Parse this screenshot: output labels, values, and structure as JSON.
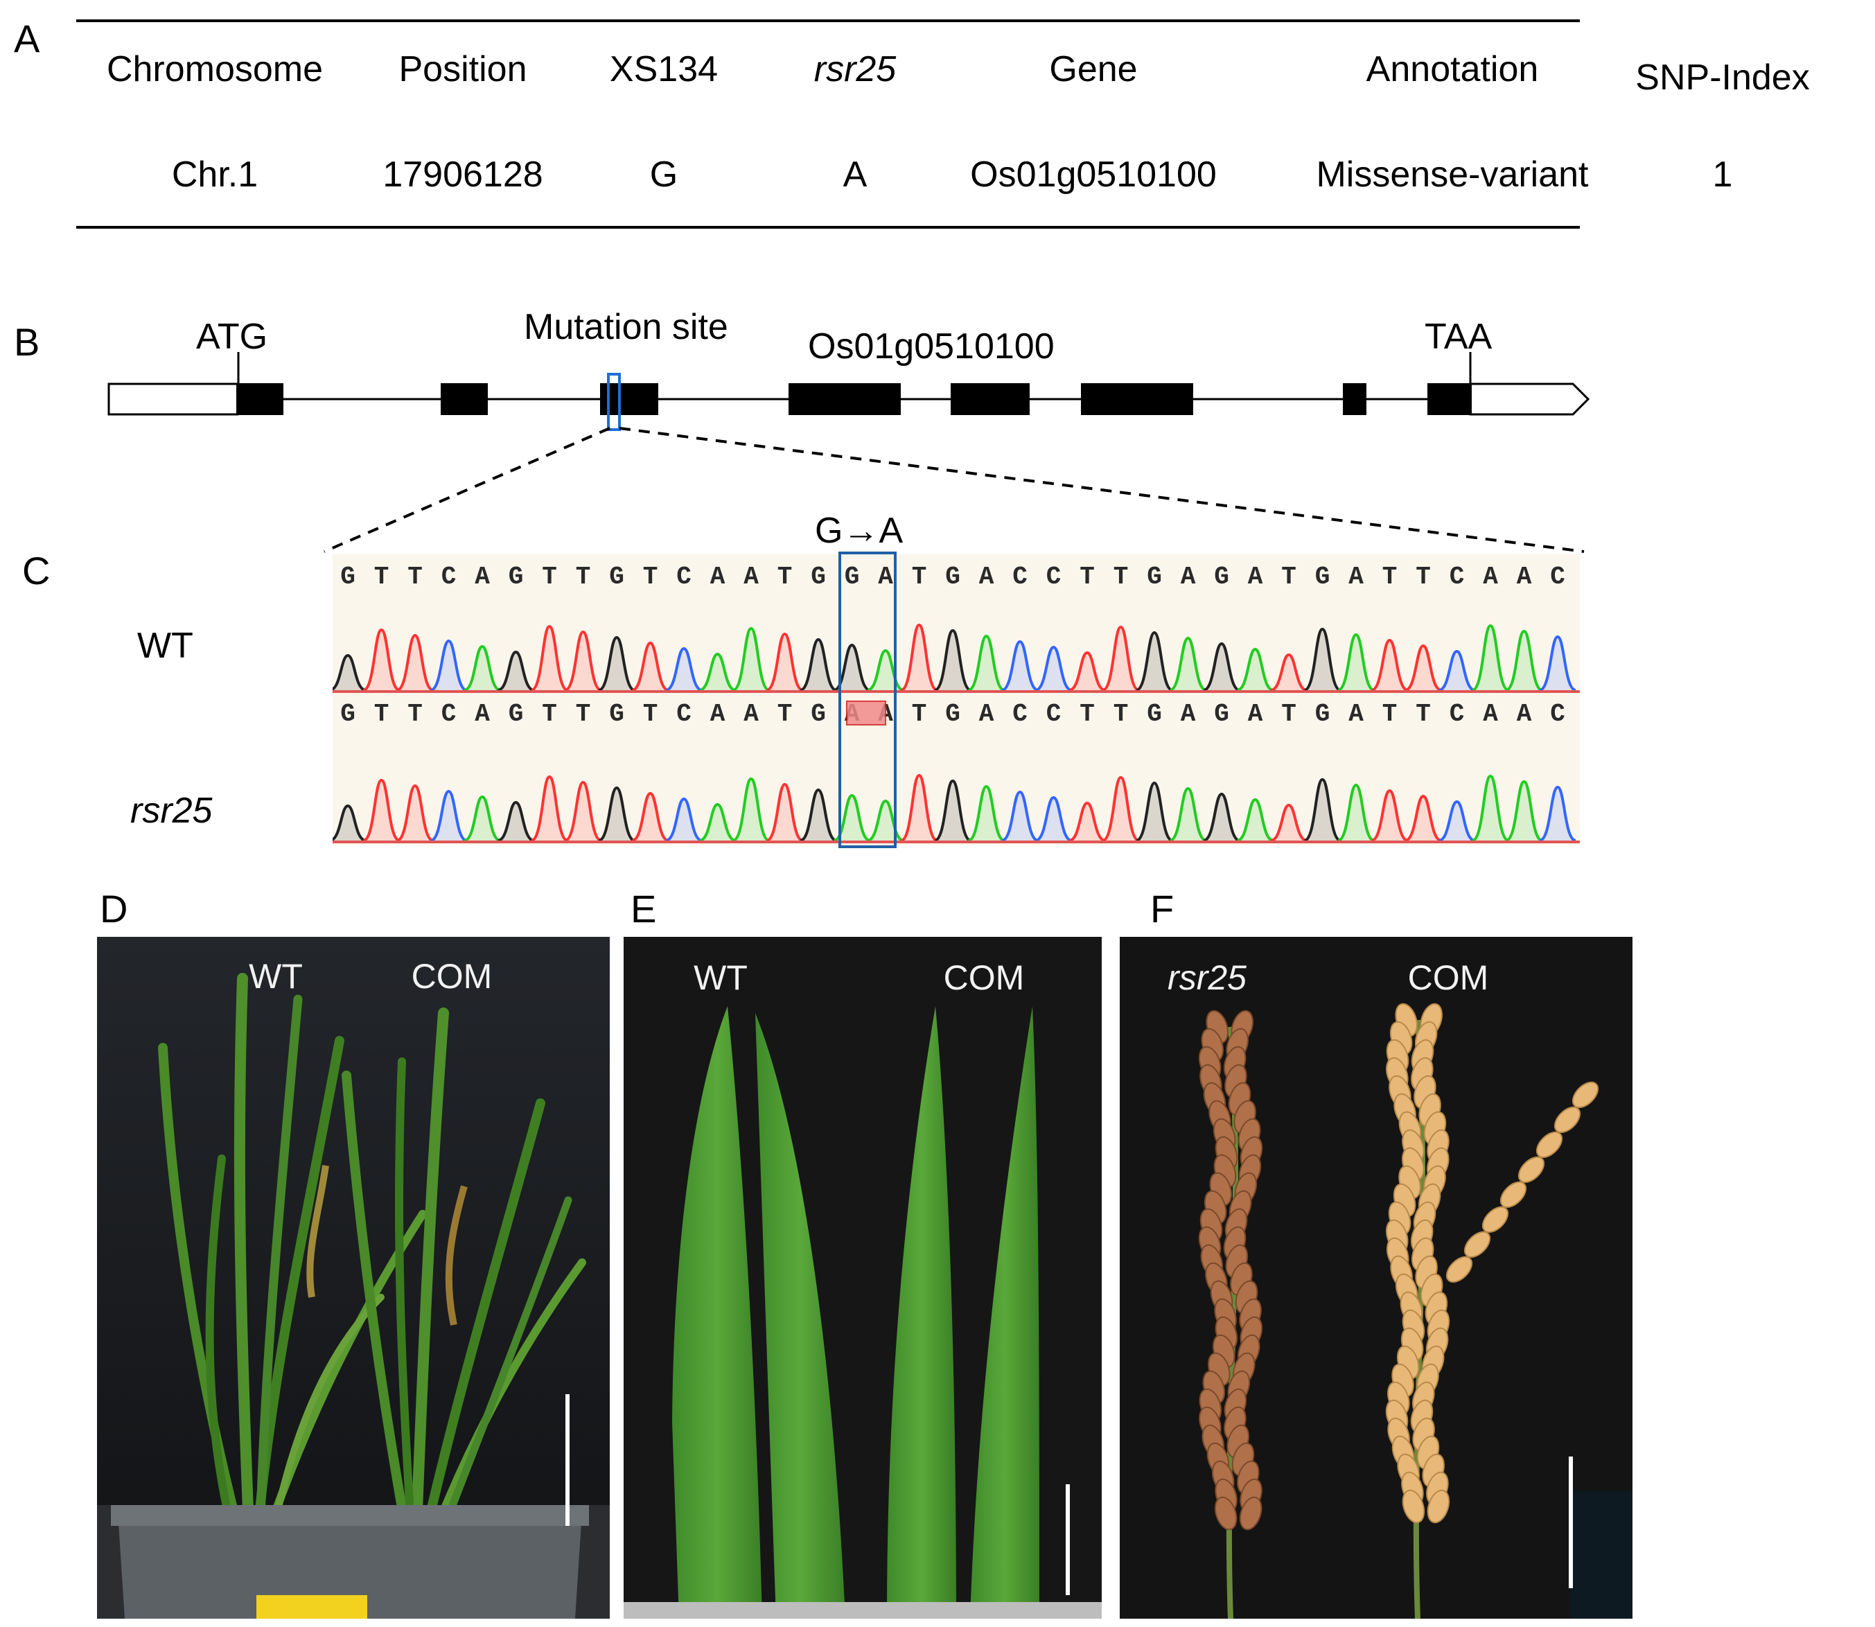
{
  "panels": {
    "A": "A",
    "B": "B",
    "C": "C",
    "D": "D",
    "E": "E",
    "F": "F"
  },
  "table": {
    "headers": [
      "Chromosome",
      "Position",
      "XS134",
      "rsr25",
      "Gene",
      "Annotation",
      "SNP-Index"
    ],
    "row": [
      "Chr.1",
      "17906128",
      "G",
      "A",
      "Os01g0510100",
      "Missense-variant",
      "1"
    ]
  },
  "gene": {
    "start_codon": "ATG",
    "stop_codon": "TAA",
    "mutation_label": "Mutation site",
    "gene_name": "Os01g0510100"
  },
  "chromatogram": {
    "mutation": "G→A",
    "wt_label": "WT",
    "mut_label": "rsr25",
    "wt_sequence": "GTTCAGTTGTCAATGGATGACCTTGAGATGATTCAAC",
    "mut_sequence": "GTTCAGTTGTCAATGAATGACCTTGAGATGATTCAAC",
    "colors": {
      "A": "#22cc22",
      "C": "#3366ff",
      "G": "#222222",
      "T": "#ff3333"
    }
  },
  "photos": {
    "D": {
      "left": "WT",
      "right": "COM"
    },
    "E": {
      "left": "WT",
      "right": "COM"
    },
    "F": {
      "left": "rsr25",
      "right": "COM"
    }
  }
}
